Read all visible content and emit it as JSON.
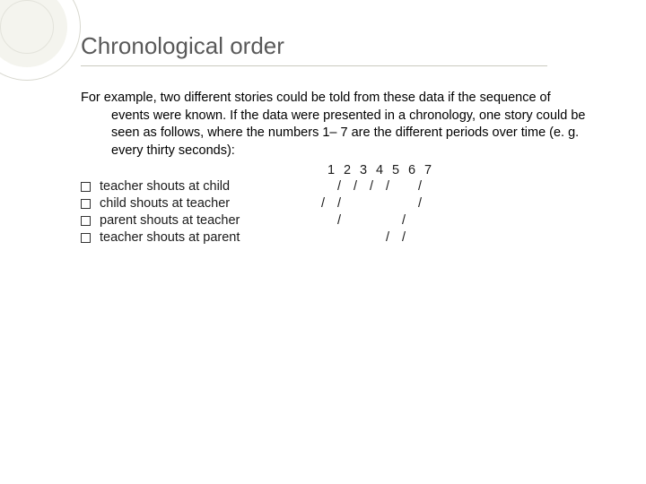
{
  "title": "Chronological order",
  "paragraph": "For example, two different stories could be told from these data if the sequence of events were known. If the data were presented in a chronology, one story could be seen as follows, where the numbers 1– 7 are the different periods over time (e. g. every thirty seconds):",
  "columns": [
    "1",
    "2",
    "3",
    "4",
    "5",
    "6",
    "7"
  ],
  "rows": [
    {
      "label": "teacher shouts at child",
      "marks": [
        "",
        "/",
        "/",
        "/",
        "/",
        "",
        "/"
      ]
    },
    {
      "label": "child shouts at teacher",
      "marks": [
        "/",
        "/",
        "",
        "",
        "",
        "",
        "/"
      ]
    },
    {
      "label": "parent shouts at teacher",
      "marks": [
        "",
        "/",
        "",
        "",
        "",
        "/",
        ""
      ]
    },
    {
      "label": "teacher shouts at parent",
      "marks": [
        "",
        "",
        "",
        "",
        "/",
        "/",
        ""
      ]
    }
  ],
  "colors": {
    "title": "#595959",
    "underline": "#c9c9bf",
    "text": "#000000",
    "background": "#ffffff"
  }
}
